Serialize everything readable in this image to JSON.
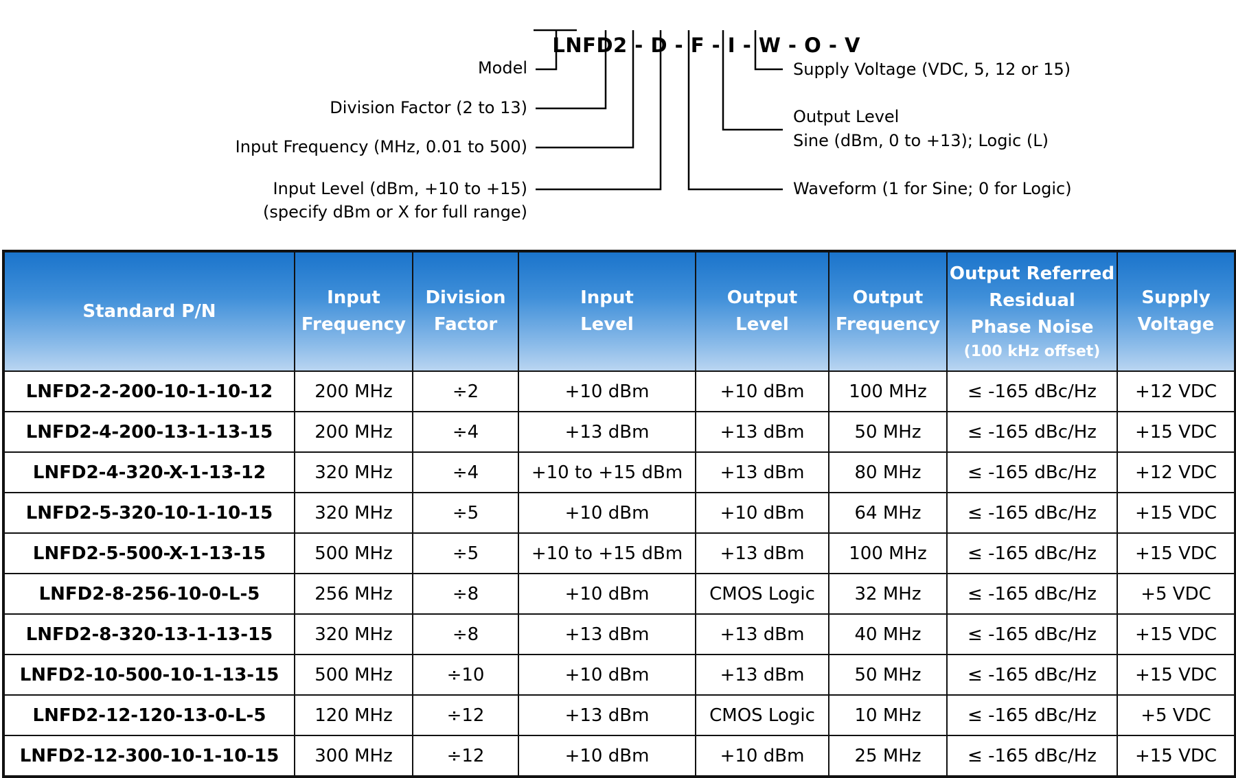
{
  "part_code": {
    "model": "LNFD2",
    "separator": " - ",
    "fields": [
      "D",
      "F",
      "I",
      "W",
      "O",
      "V"
    ]
  },
  "legend": {
    "model": "Model",
    "division_factor": "Division Factor (2 to 13)",
    "input_frequency": "Input Frequency (MHz, 0.01 to 500)",
    "input_level_line1": "Input Level (dBm, +10 to +15)",
    "input_level_line2": "(specify dBm or X for full range)",
    "supply_voltage": "Supply Voltage (VDC, 5, 12 or 15)",
    "output_level_line1": "Output Level",
    "output_level_line2": "Sine (dBm, 0 to +13);  Logic (L)",
    "waveform": "Waveform (1 for Sine; 0 for Logic)"
  },
  "table": {
    "headers": {
      "pn": "Standard P/N",
      "input_frequency": [
        "Input",
        "Frequency"
      ],
      "division_factor": [
        "Division",
        "Factor"
      ],
      "input_level": [
        "Input",
        "Level"
      ],
      "output_level": [
        "Output",
        "Level"
      ],
      "output_frequency": [
        "Output",
        "Frequency"
      ],
      "phase_noise": [
        "Output Referred",
        "Residual",
        "Phase Noise"
      ],
      "phase_noise_sub": "(100 kHz offset)",
      "supply_voltage": [
        "Supply",
        "Voltage"
      ]
    },
    "rows": [
      [
        "LNFD2-2-200-10-1-10-12",
        "200 MHz",
        "÷2",
        "+10 dBm",
        "+10 dBm",
        "100 MHz",
        "≤ -165 dBc/Hz",
        "+12 VDC"
      ],
      [
        "LNFD2-4-200-13-1-13-15",
        "200 MHz",
        "÷4",
        "+13 dBm",
        "+13 dBm",
        "50 MHz",
        "≤ -165 dBc/Hz",
        "+15 VDC"
      ],
      [
        "LNFD2-4-320-X-1-13-12",
        "320 MHz",
        "÷4",
        "+10 to +15 dBm",
        "+13 dBm",
        "80 MHz",
        "≤ -165 dBc/Hz",
        "+12 VDC"
      ],
      [
        "LNFD2-5-320-10-1-10-15",
        "320 MHz",
        "÷5",
        "+10 dBm",
        "+10 dBm",
        "64 MHz",
        "≤ -165 dBc/Hz",
        "+15 VDC"
      ],
      [
        "LNFD2-5-500-X-1-13-15",
        "500 MHz",
        "÷5",
        "+10 to +15 dBm",
        "+13 dBm",
        "100 MHz",
        "≤ -165 dBc/Hz",
        "+15 VDC"
      ],
      [
        "LNFD2-8-256-10-0-L-5",
        "256 MHz",
        "÷8",
        "+10 dBm",
        "CMOS Logic",
        "32 MHz",
        "≤ -165 dBc/Hz",
        "+5 VDC"
      ],
      [
        "LNFD2-8-320-13-1-13-15",
        "320 MHz",
        "÷8",
        "+13 dBm",
        "+13 dBm",
        "40 MHz",
        "≤ -165 dBc/Hz",
        "+15 VDC"
      ],
      [
        "LNFD2-10-500-10-1-13-15",
        "500 MHz",
        "÷10",
        "+10 dBm",
        "+13 dBm",
        "50 MHz",
        "≤ -165 dBc/Hz",
        "+15 VDC"
      ],
      [
        "LNFD2-12-120-13-0-L-5",
        "120 MHz",
        "÷12",
        "+13 dBm",
        "CMOS Logic",
        "10 MHz",
        "≤ -165 dBc/Hz",
        "+5 VDC"
      ],
      [
        "LNFD2-12-300-10-1-10-15",
        "300 MHz",
        "÷12",
        "+10 dBm",
        "+10 dBm",
        "25 MHz",
        "≤ -165 dBc/Hz",
        "+15 VDC"
      ]
    ]
  }
}
